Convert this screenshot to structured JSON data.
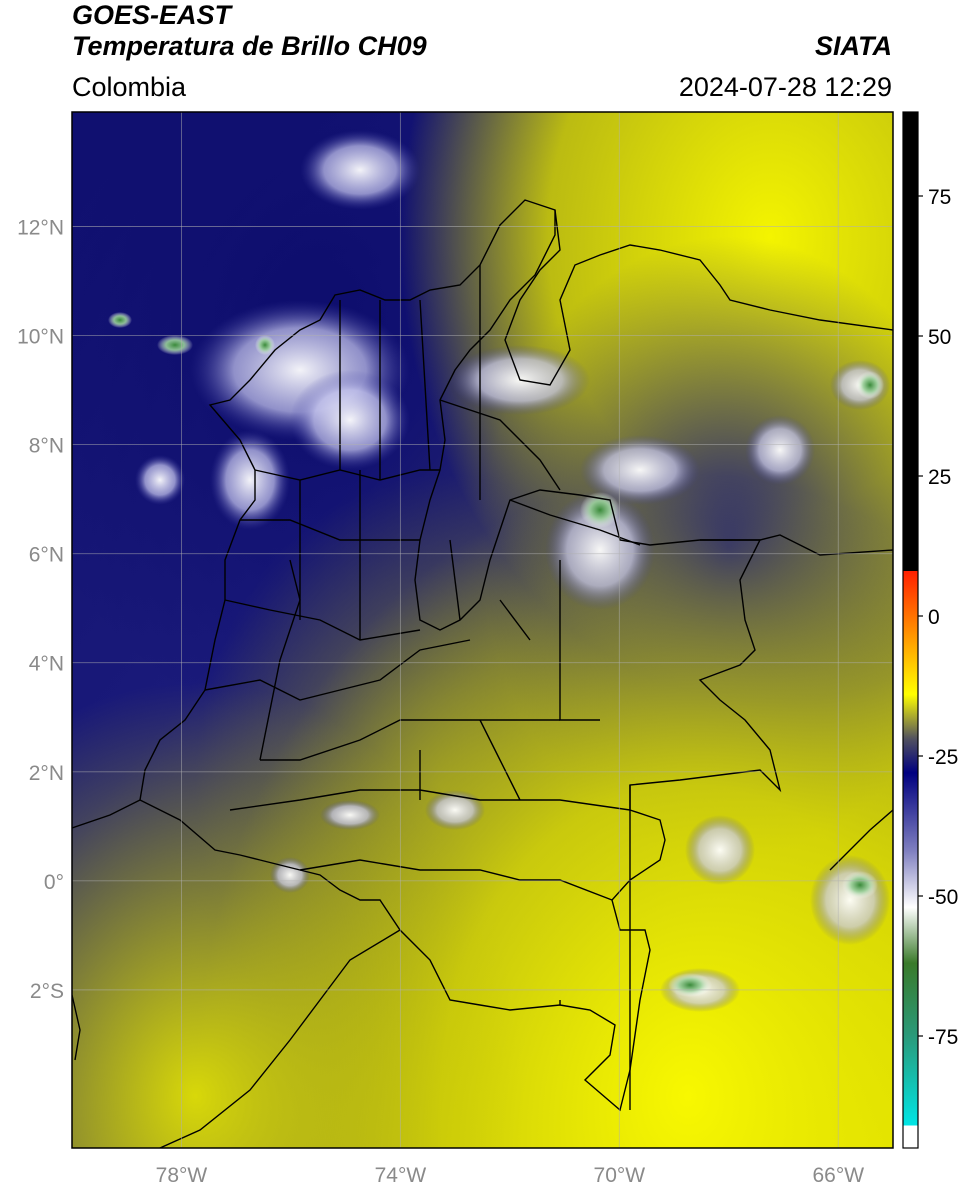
{
  "header": {
    "satellite": "GOES-EAST",
    "product": "Temperatura de Brillo CH09",
    "region": "Colombia",
    "organization": "SIATA",
    "timestamp": "2024-07-28 12:29"
  },
  "map": {
    "extent": {
      "lon_min": -80,
      "lon_max": -65,
      "lat_min": -4.9,
      "lat_max": 14.1
    },
    "lon_ticks": [
      {
        "value": -78,
        "label": "78°W"
      },
      {
        "value": -74,
        "label": "74°W"
      },
      {
        "value": -70,
        "label": "70°W"
      },
      {
        "value": -66,
        "label": "66°W"
      }
    ],
    "lat_ticks": [
      {
        "value": 12,
        "label": "12°N"
      },
      {
        "value": 10,
        "label": "10°N"
      },
      {
        "value": 8,
        "label": "8°N"
      },
      {
        "value": 6,
        "label": "6°N"
      },
      {
        "value": 4,
        "label": "4°N"
      },
      {
        "value": 2,
        "label": "2°N"
      },
      {
        "value": 0,
        "label": "0°"
      },
      {
        "value": -2,
        "label": "2°S"
      }
    ],
    "gridlines": true,
    "colors": {
      "warm_yellow": "#f2f200",
      "olive": "#6e6e3a",
      "navy": "#101080",
      "cloud_white": "#e8e8ff",
      "cold_green": "#3a8a3a",
      "borders": "#000000"
    }
  },
  "colorbar": {
    "range": [
      -95,
      90
    ],
    "ticks": [
      {
        "value": 75,
        "label": "75"
      },
      {
        "value": 50,
        "label": "50"
      },
      {
        "value": 25,
        "label": "25"
      },
      {
        "value": 0,
        "label": "0"
      },
      {
        "value": -25,
        "label": "-25"
      },
      {
        "value": -50,
        "label": "-50"
      },
      {
        "value": -75,
        "label": "-75"
      }
    ],
    "stops": [
      {
        "value": -95,
        "color": "#ffffff"
      },
      {
        "value": -91,
        "color": "#ffffff"
      },
      {
        "value": -91,
        "color": "#00e5e5"
      },
      {
        "value": -75,
        "color": "#2a9a7a"
      },
      {
        "value": -62,
        "color": "#3a7a2a"
      },
      {
        "value": -52,
        "color": "#ffffff"
      },
      {
        "value": -42,
        "color": "#8080c0"
      },
      {
        "value": -28,
        "color": "#000080"
      },
      {
        "value": -22,
        "color": "#505060"
      },
      {
        "value": -14,
        "color": "#ffff00"
      },
      {
        "value": -5,
        "color": "#ffa500"
      },
      {
        "value": 8,
        "color": "#ff2000"
      },
      {
        "value": 8,
        "color": "#000000"
      },
      {
        "value": 90,
        "color": "#000000"
      }
    ]
  }
}
